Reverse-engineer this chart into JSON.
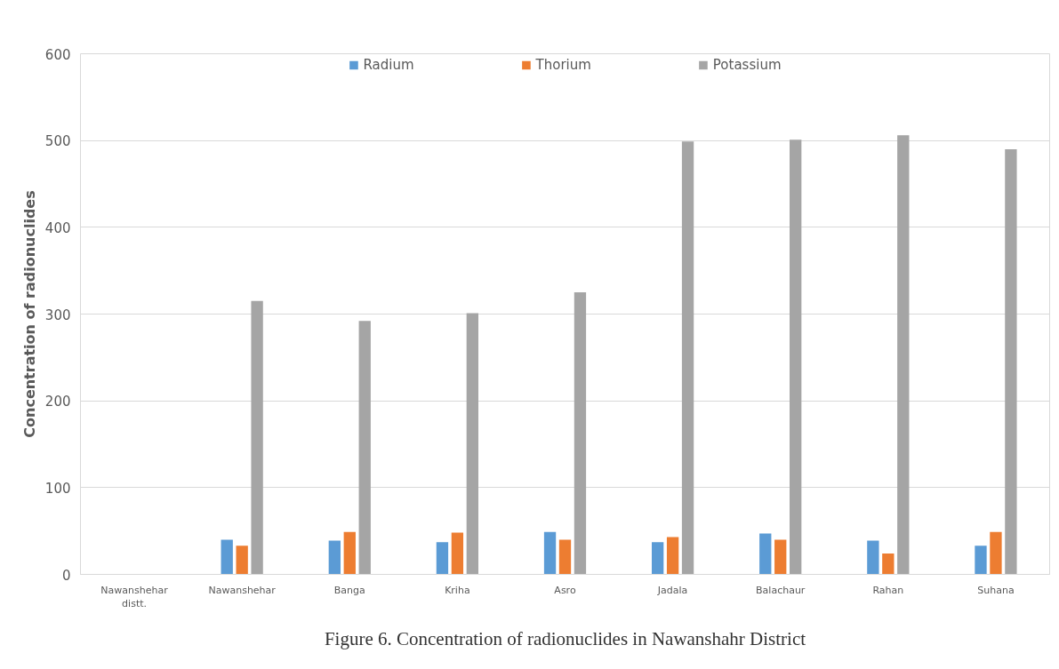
{
  "chart_data": {
    "type": "bar",
    "ylabel": "Concentration of radionuclides",
    "categories": [
      "Nawanshehar distt.",
      "Nawanshehar",
      "Banga",
      "Kriha",
      "Asro",
      "Jadala",
      "Balachaur",
      "Rahan",
      "Suhana"
    ],
    "series": [
      {
        "name": "Radium",
        "color": "#5b9bd5",
        "values": [
          null,
          40,
          39,
          37,
          49,
          37,
          47,
          39,
          33
        ]
      },
      {
        "name": "Thorium",
        "color": "#ed7d31",
        "values": [
          null,
          33,
          49,
          48,
          40,
          43,
          40,
          24,
          49
        ]
      },
      {
        "name": "Potassium",
        "color": "#a5a5a5",
        "values": [
          null,
          315,
          292,
          301,
          325,
          499,
          501,
          506,
          490
        ]
      }
    ],
    "ylim": [
      0,
      600
    ],
    "yticks": [
      0,
      100,
      200,
      300,
      400,
      500,
      600
    ],
    "grid": "y",
    "legend": "top",
    "annotations": [
      "Figure 6. Concentration of radionuclides in Nawanshahr District"
    ]
  }
}
